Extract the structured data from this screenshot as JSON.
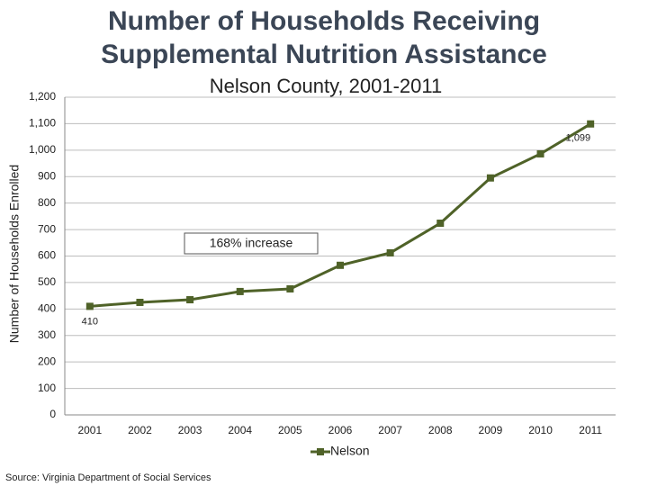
{
  "chart_data": {
    "type": "line",
    "title": [
      "Number of Households Receiving",
      "Supplemental Nutrition Assistance"
    ],
    "subtitle": "Nelson County, 2001-2011",
    "y_label": "Number of Households Enrolled",
    "categories": [
      "2001",
      "2002",
      "2003",
      "2004",
      "2005",
      "2006",
      "2007",
      "2008",
      "2009",
      "2010",
      "2011"
    ],
    "series": [
      {
        "name": "Nelson",
        "color": "#4f6228",
        "values": [
          410,
          425,
          435,
          466,
          476,
          565,
          612,
          724,
          895,
          986,
          1099
        ],
        "value_labels": [
          "410",
          null,
          null,
          null,
          null,
          null,
          null,
          null,
          null,
          null,
          "1,099"
        ]
      }
    ],
    "ylim": [
      0,
      1200
    ],
    "yticks": [
      0,
      100,
      200,
      300,
      400,
      500,
      600,
      700,
      800,
      900,
      {
        "value": 1000,
        "label": "1,000"
      },
      {
        "value": 1100,
        "label": "1,100"
      },
      {
        "value": 1200,
        "label": "1,200"
      }
    ],
    "grid": true,
    "annotation": "168% increase",
    "legend": "bottom",
    "source": "Source: Virginia Department of Social Services"
  }
}
